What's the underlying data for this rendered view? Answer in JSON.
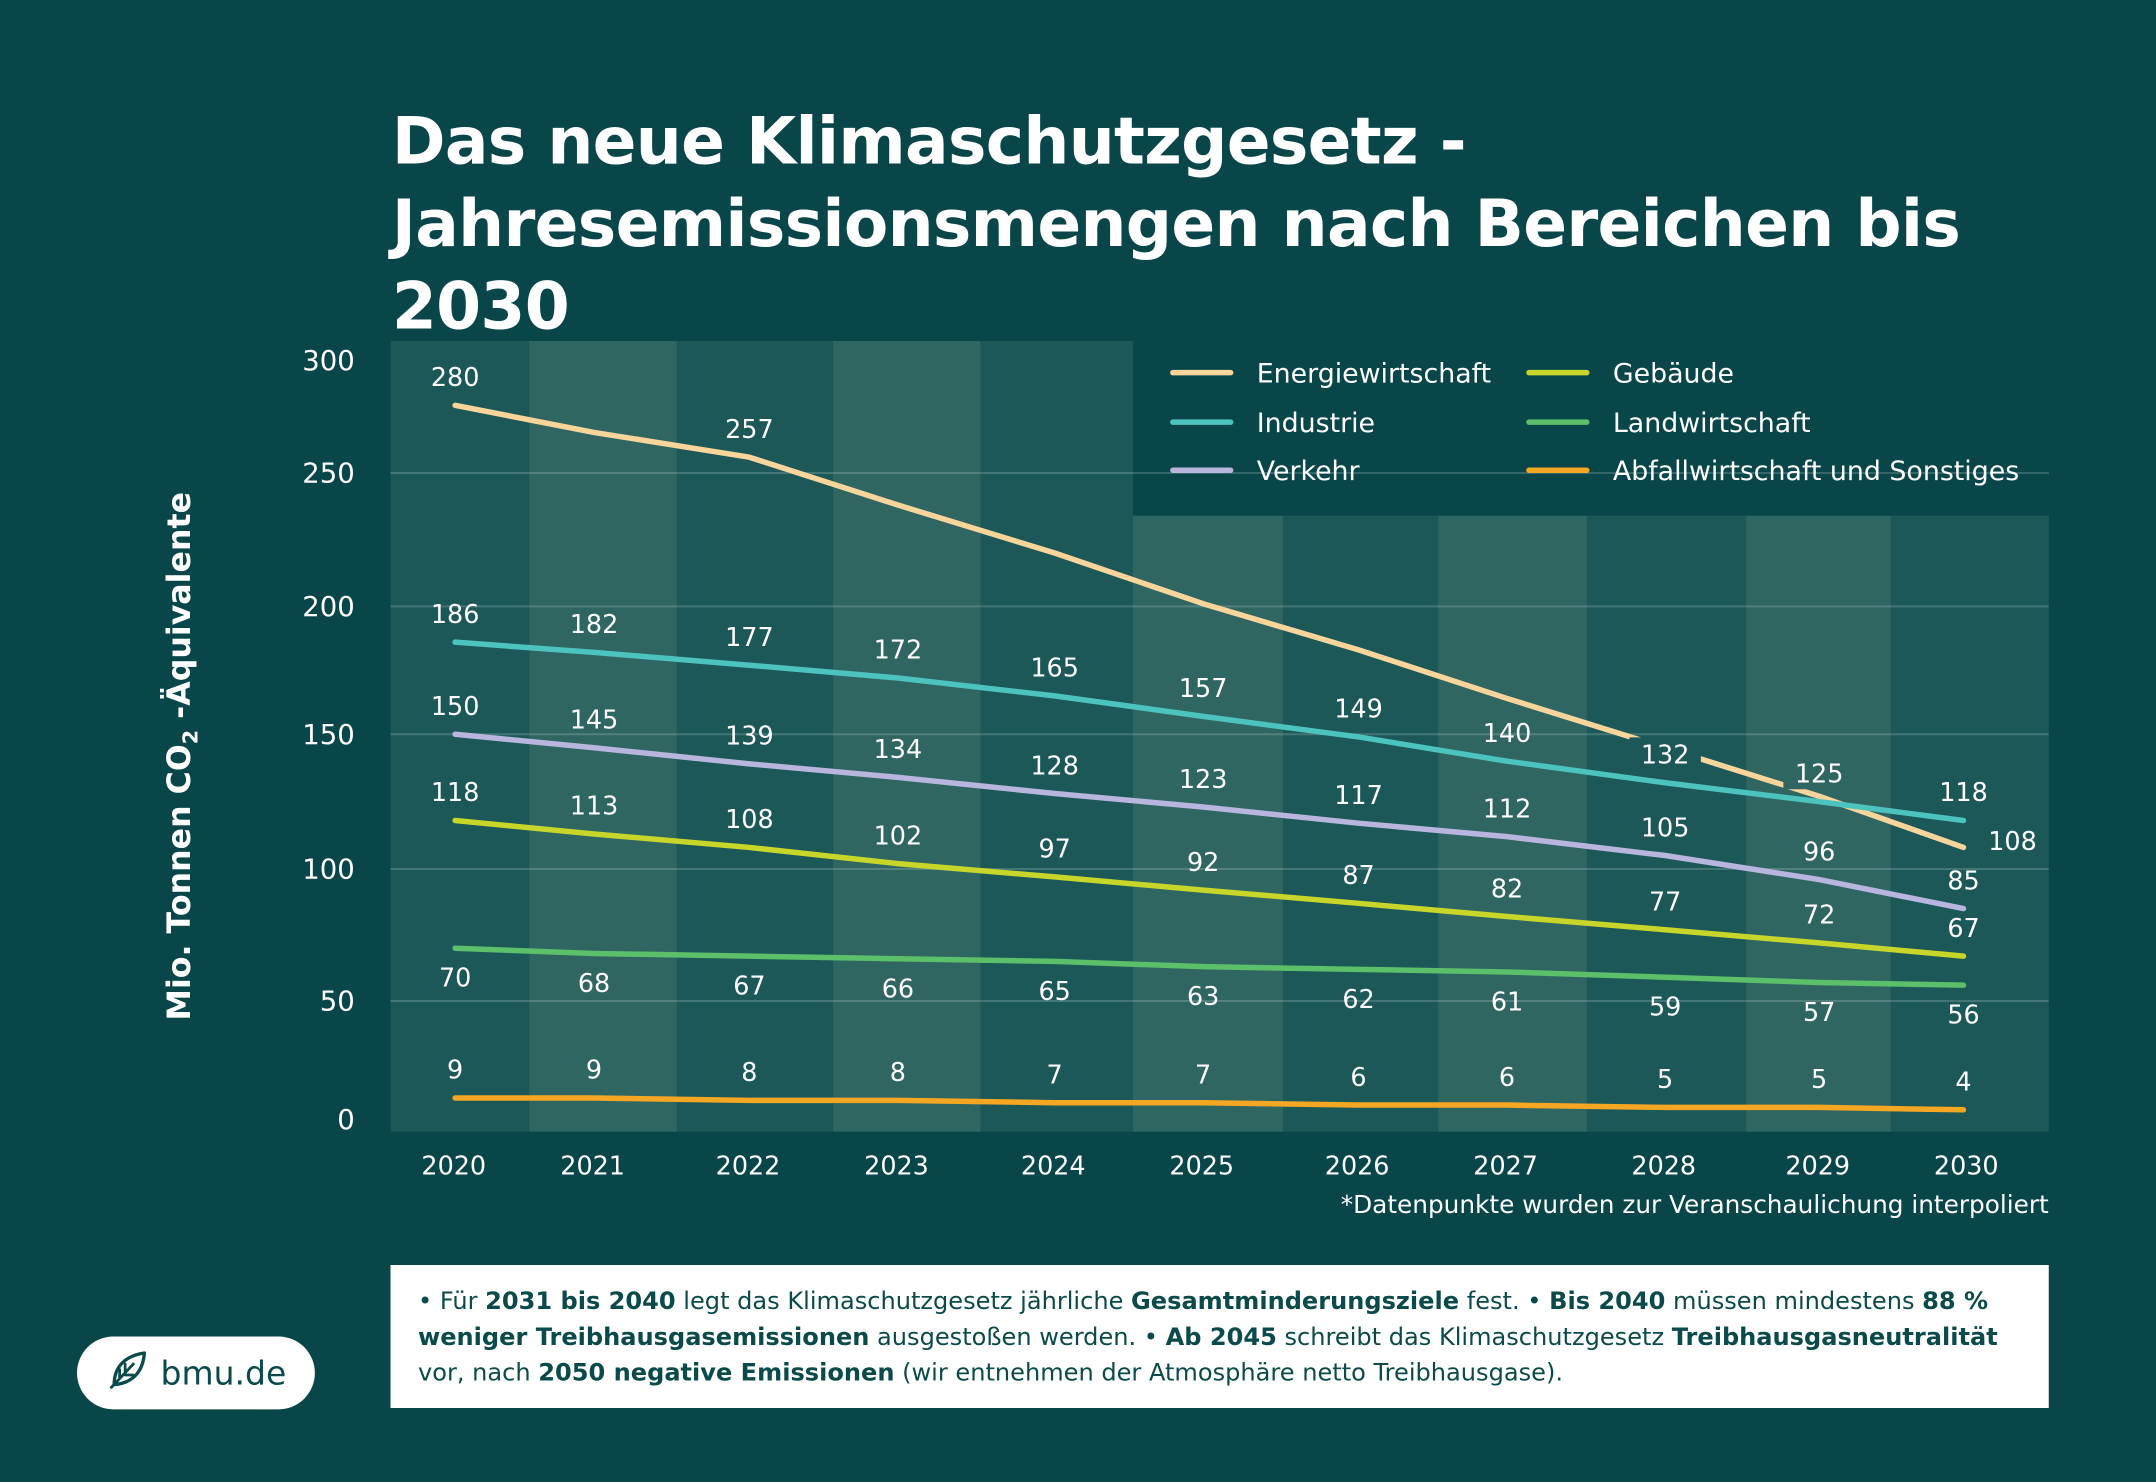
{
  "title_lines": [
    "Das neue Klimaschutzgesetz -",
    "Jahresemissionsmengen nach Bereichen bis 2030"
  ],
  "chart_data": {
    "type": "line",
    "title": "Das neue Klimaschutzgesetz - Jahresemissionsmengen nach Bereichen bis 2030",
    "ylabel_parts": [
      "Mio. Tonnen CO",
      "2",
      " -Äquivalente"
    ],
    "xlabel": "",
    "x": [
      "2020",
      "2021",
      "2022",
      "2023",
      "2024",
      "2025",
      "2026",
      "2027",
      "2028",
      "2029",
      "2030"
    ],
    "yticks": [
      0,
      50,
      100,
      150,
      200,
      250,
      300
    ],
    "ylim": [
      0,
      300
    ],
    "grid": true,
    "legend_position": "top-right",
    "series": [
      {
        "name": "Energiewirtschaft",
        "color": "#f9d49b",
        "values": [
          280,
          268,
          257,
          238,
          220,
          201,
          183,
          164,
          145,
          127,
          108
        ],
        "labels": [
          "280",
          "",
          "257",
          "",
          "",
          "",
          "",
          "",
          "",
          "",
          "108"
        ]
      },
      {
        "name": "Industrie",
        "color": "#4cc3bf",
        "values": [
          186,
          182,
          177,
          172,
          165,
          157,
          149,
          140,
          132,
          125,
          118
        ],
        "labels": [
          "186",
          "182",
          "177",
          "172",
          "165",
          "157",
          "149",
          "140",
          "132",
          "125",
          "118"
        ]
      },
      {
        "name": "Verkehr",
        "color": "#b8b5de",
        "values": [
          150,
          145,
          139,
          134,
          128,
          123,
          117,
          112,
          105,
          96,
          85
        ],
        "labels": [
          "150",
          "145",
          "139",
          "134",
          "128",
          "123",
          "117",
          "112",
          "105",
          "96",
          "85"
        ]
      },
      {
        "name": "Gebäude",
        "color": "#c8d62a",
        "values": [
          118,
          113,
          108,
          102,
          97,
          92,
          87,
          82,
          77,
          72,
          67
        ],
        "labels": [
          "118",
          "113",
          "108",
          "102",
          "97",
          "92",
          "87",
          "82",
          "77",
          "72",
          "67"
        ]
      },
      {
        "name": "Landwirtschaft",
        "color": "#5cbf6a",
        "values": [
          70,
          68,
          67,
          66,
          65,
          63,
          62,
          61,
          59,
          57,
          56
        ],
        "labels": [
          "70",
          "68",
          "67",
          "66",
          "65",
          "63",
          "62",
          "61",
          "59",
          "57",
          "56"
        ]
      },
      {
        "name": "Abfallwirtschaft und Sonstiges",
        "color": "#f5a623",
        "values": [
          9,
          9,
          8,
          8,
          7,
          7,
          6,
          6,
          5,
          5,
          4
        ],
        "labels": [
          "9",
          "9",
          "8",
          "8",
          "7",
          "7",
          "6",
          "6",
          "5",
          "5",
          "4"
        ]
      }
    ],
    "annotation": "*Datenpunkte wurden zur Veranschaulichung interpoliert"
  },
  "info_segments": [
    {
      "t": "• Für ",
      "b": false
    },
    {
      "t": "2031 bis 2040",
      "b": true
    },
    {
      "t": " legt das Klimaschutzgesetz jährliche ",
      "b": false
    },
    {
      "t": "Gesamtminderungsziele",
      "b": true
    },
    {
      "t": " fest. • ",
      "b": false
    },
    {
      "t": "Bis 2040",
      "b": true
    },
    {
      "t": " müssen mindestens ",
      "b": false
    },
    {
      "t": "88 % weniger Treibhausgasemissionen",
      "b": true
    },
    {
      "t": " ausgestoßen werden. • ",
      "b": false
    },
    {
      "t": "Ab 2045",
      "b": true
    },
    {
      "t": " schreibt das Klimaschutzgesetz ",
      "b": false
    },
    {
      "t": "Treibhausgasneutralität",
      "b": true
    },
    {
      "t": " vor, nach ",
      "b": false
    },
    {
      "t": "2050 negative Emissionen",
      "b": true
    },
    {
      "t": " (wir entnehmen der Atmosphäre netto Treibhausgase).",
      "b": false
    }
  ],
  "logo": {
    "text": "bmu.de",
    "icon": "leaf-icon"
  },
  "colors": {
    "background": "#08464a",
    "plot": "#1c5858",
    "band": "#2f6662"
  }
}
